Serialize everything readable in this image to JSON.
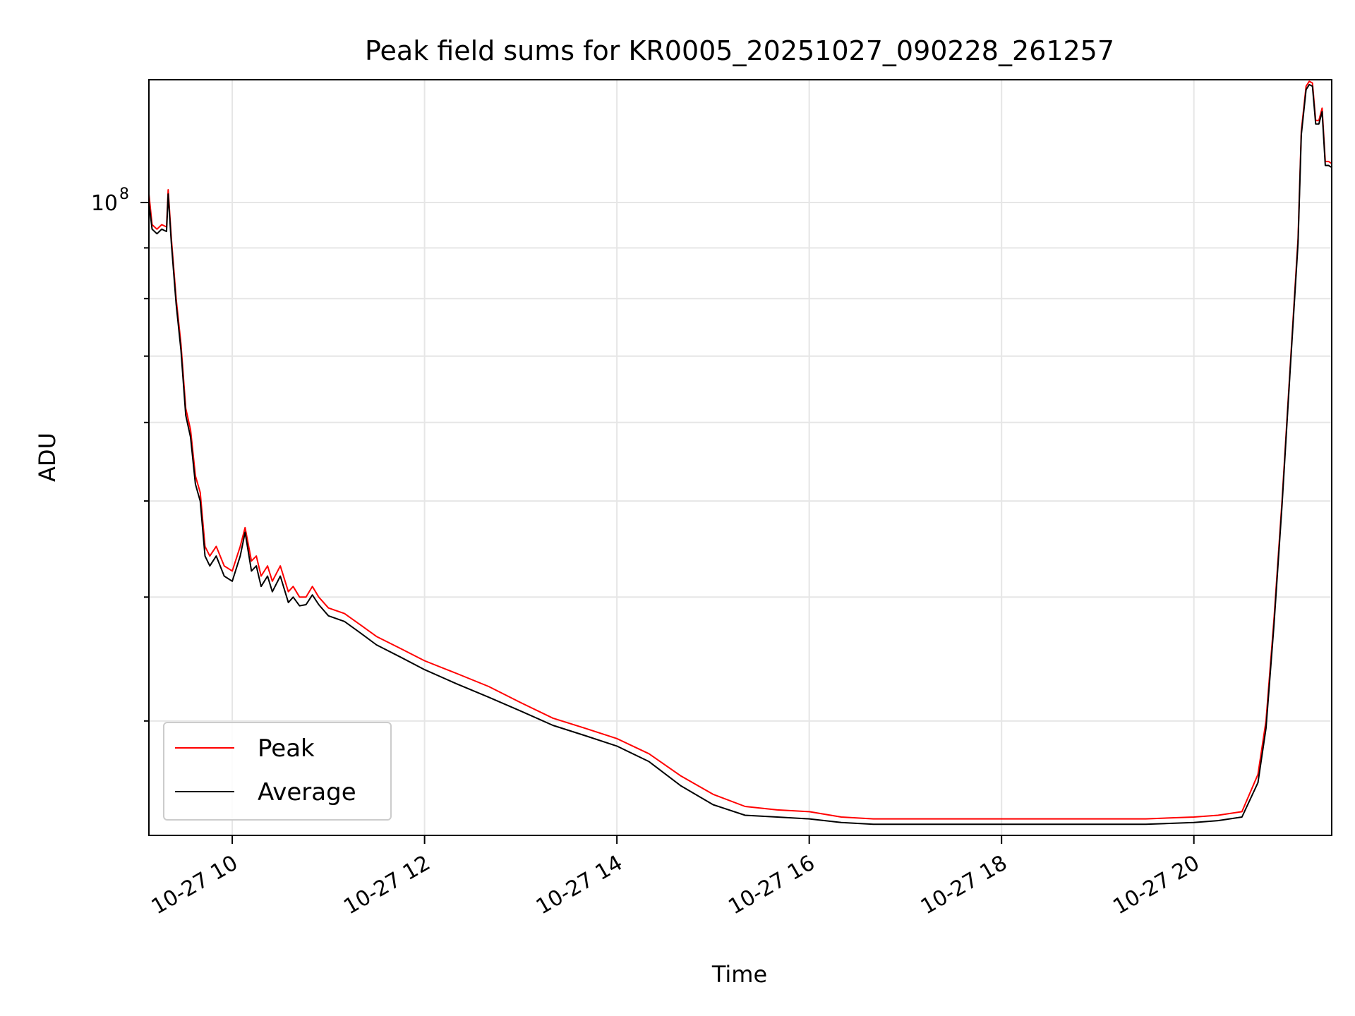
{
  "chart_data": {
    "type": "line",
    "title": "Peak field sums for KR0005_20251027_090228_261257",
    "xlabel": "Time",
    "ylabel": "ADU",
    "yscale": "log",
    "grid": true,
    "legend_position": "lower-left",
    "x_range": [
      "10-27 09:08",
      "10-27 21:26"
    ],
    "y_range": [
      23000000,
      133000000
    ],
    "x_ticks": [
      "10-27 10",
      "10-27 12",
      "10-27 14",
      "10-27 16",
      "10-27 18",
      "10-27 20"
    ],
    "y_ticks_major": [
      {
        "label_base": "10",
        "label_exp": "8",
        "value": 100000000
      }
    ],
    "y_ticks_minor": [
      30000000,
      40000000,
      50000000,
      60000000,
      70000000,
      80000000,
      90000000
    ],
    "series": [
      {
        "name": "Peak",
        "color": "#ff0000",
        "x": [
          "09:08",
          "09:10",
          "09:13",
          "09:16",
          "09:19",
          "09:20",
          "09:22",
          "09:25",
          "09:28",
          "09:31",
          "09:34",
          "09:37",
          "09:40",
          "09:43",
          "09:46",
          "09:50",
          "09:55",
          "10:00",
          "10:05",
          "10:08",
          "10:12",
          "10:15",
          "10:18",
          "10:22",
          "10:25",
          "10:30",
          "10:35",
          "10:38",
          "10:42",
          "10:46",
          "10:50",
          "10:54",
          "11:00",
          "11:10",
          "11:20",
          "11:30",
          "11:45",
          "12:00",
          "12:20",
          "12:40",
          "13:00",
          "13:20",
          "13:40",
          "14:00",
          "14:20",
          "14:40",
          "15:00",
          "15:20",
          "15:40",
          "16:00",
          "16:20",
          "16:40",
          "17:00",
          "17:30",
          "18:00",
          "18:30",
          "19:00",
          "19:30",
          "20:00",
          "20:15",
          "20:30",
          "20:40",
          "20:45",
          "20:50",
          "20:55",
          "21:00",
          "21:05",
          "21:07",
          "21:10",
          "21:12",
          "21:14",
          "21:16",
          "21:18",
          "21:20",
          "21:22",
          "21:24",
          "21:26"
        ],
        "y": [
          102000000,
          95000000,
          94000000,
          95000000,
          94500000,
          103000000,
          92000000,
          80000000,
          72000000,
          62000000,
          59000000,
          53000000,
          51000000,
          45000000,
          44000000,
          45000000,
          43000000,
          42500000,
          45000000,
          47000000,
          43500000,
          44000000,
          42000000,
          43000000,
          41500000,
          43000000,
          40500000,
          41000000,
          40000000,
          40000000,
          41000000,
          40000000,
          39000000,
          38500000,
          37500000,
          36500000,
          35500000,
          34500000,
          33500000,
          32500000,
          31300000,
          30200000,
          29500000,
          28800000,
          27800000,
          26400000,
          25300000,
          24600000,
          24400000,
          24300000,
          24000000,
          23900000,
          23900000,
          23900000,
          23900000,
          23900000,
          23900000,
          23900000,
          24000000,
          24100000,
          24300000,
          26500000,
          30000000,
          38000000,
          50000000,
          68000000,
          92000000,
          118000000,
          131000000,
          132500000,
          132000000,
          121000000,
          121000000,
          124500000,
          110000000,
          110000000,
          109500000
        ]
      },
      {
        "name": "Average",
        "color": "#000000",
        "x": [
          "09:08",
          "09:10",
          "09:13",
          "09:16",
          "09:19",
          "09:20",
          "09:22",
          "09:25",
          "09:28",
          "09:31",
          "09:34",
          "09:37",
          "09:40",
          "09:43",
          "09:46",
          "09:50",
          "09:55",
          "10:00",
          "10:05",
          "10:08",
          "10:12",
          "10:15",
          "10:18",
          "10:22",
          "10:25",
          "10:30",
          "10:35",
          "10:38",
          "10:42",
          "10:46",
          "10:50",
          "10:54",
          "11:00",
          "11:10",
          "11:20",
          "11:30",
          "11:45",
          "12:00",
          "12:20",
          "12:40",
          "13:00",
          "13:20",
          "13:40",
          "14:00",
          "14:20",
          "14:40",
          "15:00",
          "15:20",
          "15:40",
          "16:00",
          "16:20",
          "16:40",
          "17:00",
          "17:30",
          "18:00",
          "18:30",
          "19:00",
          "19:30",
          "20:00",
          "20:15",
          "20:30",
          "20:40",
          "20:45",
          "20:50",
          "20:55",
          "21:00",
          "21:05",
          "21:07",
          "21:10",
          "21:12",
          "21:14",
          "21:16",
          "21:18",
          "21:20",
          "21:22",
          "21:24",
          "21:26"
        ],
        "y": [
          100000000,
          94000000,
          93000000,
          94000000,
          93500000,
          102000000,
          91000000,
          79000000,
          71000000,
          61000000,
          58000000,
          52000000,
          50000000,
          44000000,
          43000000,
          44000000,
          42000000,
          41500000,
          44000000,
          46500000,
          42500000,
          43000000,
          41000000,
          42000000,
          40500000,
          42000000,
          39500000,
          40000000,
          39200000,
          39300000,
          40200000,
          39300000,
          38300000,
          37800000,
          36800000,
          35800000,
          34800000,
          33800000,
          32700000,
          31700000,
          30700000,
          29700000,
          29000000,
          28300000,
          27300000,
          25800000,
          24700000,
          24100000,
          24000000,
          23900000,
          23700000,
          23600000,
          23600000,
          23600000,
          23600000,
          23600000,
          23600000,
          23600000,
          23700000,
          23800000,
          24000000,
          26000000,
          29500000,
          37500000,
          49500000,
          67500000,
          91000000,
          117000000,
          130000000,
          131500000,
          131000000,
          120000000,
          120000000,
          123500000,
          109000000,
          109000000,
          108500000
        ]
      }
    ]
  }
}
